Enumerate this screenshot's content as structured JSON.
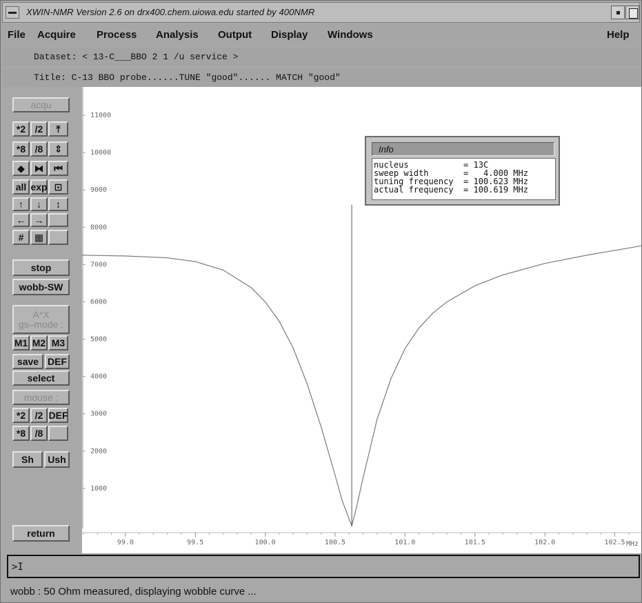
{
  "window": {
    "title": "XWIN-NMR Version  2.6 on drx400.chem.uiowa.edu started by 400NMR"
  },
  "menubar": {
    "items": [
      "File",
      "Acquire",
      "Process",
      "Analysis",
      "Output",
      "Display",
      "Windows"
    ],
    "help": "Help"
  },
  "dataset_line": "Dataset: < 13-C___BBO 2 1 /u service >",
  "title_line": "Title: C-13 BBO probe......TUNE \"good\"...... MATCH \"good\"",
  "leftpanel": {
    "acqu": "acqu",
    "grid1": [
      "*2",
      "/2",
      "⤒",
      "*8",
      "/8",
      "⇕",
      "◆",
      "⧓",
      "⏮",
      "all",
      "exp",
      "⊡",
      "↑",
      "↓",
      "↕",
      "←",
      "→",
      "",
      "#",
      "▦",
      ""
    ],
    "stop": "stop",
    "wobb_sw": "wobb-SW",
    "ax": "A*X",
    "gs_mode": "gs–mode :",
    "m_buttons": [
      "M1",
      "M2",
      "M3"
    ],
    "save": "save",
    "def": "DEF",
    "select": "select",
    "mouse": "mouse :",
    "grid2": [
      "*2",
      "/2",
      "DEF",
      "*8",
      "/8",
      ""
    ],
    "sh": "Sh",
    "ush": "Ush",
    "return": "return"
  },
  "info_box": {
    "title": "Info",
    "lines": [
      "nucleus           = 13C",
      "sweep width       =   4.000 MHz",
      "tuning frequency  = 100.623 MHz",
      "actual frequency  = 100.619 MHz"
    ]
  },
  "chart_data": {
    "type": "line",
    "title": "",
    "xlabel": "MHz",
    "ylabel": "",
    "xlim": [
      98.69,
      102.69
    ],
    "ylim": [
      0,
      11500
    ],
    "x_ticks": [
      "99.0",
      "99.5",
      "100.0",
      "100.5",
      "101.0",
      "101.5",
      "102.0",
      "102.5"
    ],
    "y_ticks": [
      "1000",
      "2000",
      "3000",
      "4000",
      "5000",
      "6000",
      "7000",
      "8000",
      "9000",
      "10000",
      "11000"
    ],
    "grid": false,
    "series": [
      {
        "x": [
          98.69,
          99.0,
          99.3,
          99.5,
          99.7,
          99.9,
          100.0,
          100.1,
          100.2,
          100.3,
          100.4,
          100.5,
          100.55,
          100.6,
          100.619,
          100.65,
          100.7,
          100.8,
          100.9,
          101.0,
          101.1,
          101.2,
          101.3,
          101.5,
          101.7,
          102.0,
          102.3,
          102.69
        ],
        "values": [
          7250,
          7230,
          7180,
          7080,
          6850,
          6380,
          6000,
          5480,
          4760,
          3800,
          2650,
          1350,
          680,
          180,
          0,
          450,
          1280,
          2850,
          3950,
          4750,
          5300,
          5700,
          6000,
          6430,
          6720,
          7030,
          7250,
          7500
        ]
      }
    ],
    "marker_x": 100.619,
    "marker_y_top": 8600
  },
  "command": {
    "prompt": ">I"
  },
  "status": "wobb : 50 Ohm measured, displaying wobble curve ..."
}
